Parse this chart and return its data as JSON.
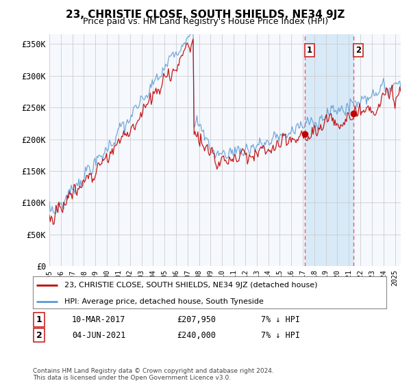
{
  "title": "23, CHRISTIE CLOSE, SOUTH SHIELDS, NE34 9JZ",
  "subtitle": "Price paid vs. HM Land Registry's House Price Index (HPI)",
  "ylabel_ticks": [
    "£0",
    "£50K",
    "£100K",
    "£150K",
    "£200K",
    "£250K",
    "£300K",
    "£350K"
  ],
  "ytick_values": [
    0,
    50000,
    100000,
    150000,
    200000,
    250000,
    300000,
    350000
  ],
  "ylim": [
    0,
    365000
  ],
  "xlim_start": 1995.0,
  "xlim_end": 2025.5,
  "hpi_color": "#5b9bd5",
  "price_color": "#c00000",
  "marker1_date": 2017.19,
  "marker1_price": 207950,
  "marker2_date": 2021.42,
  "marker2_price": 240000,
  "vline_color": "#e06060",
  "shade_color": "#d8eaf8",
  "legend_label1": "23, CHRISTIE CLOSE, SOUTH SHIELDS, NE34 9JZ (detached house)",
  "legend_label2": "HPI: Average price, detached house, South Tyneside",
  "footer": "Contains HM Land Registry data © Crown copyright and database right 2024.\nThis data is licensed under the Open Government Licence v3.0.",
  "background_color": "#ffffff",
  "plot_bg_color": "#f5f8fd",
  "grid_color": "#cccccc"
}
